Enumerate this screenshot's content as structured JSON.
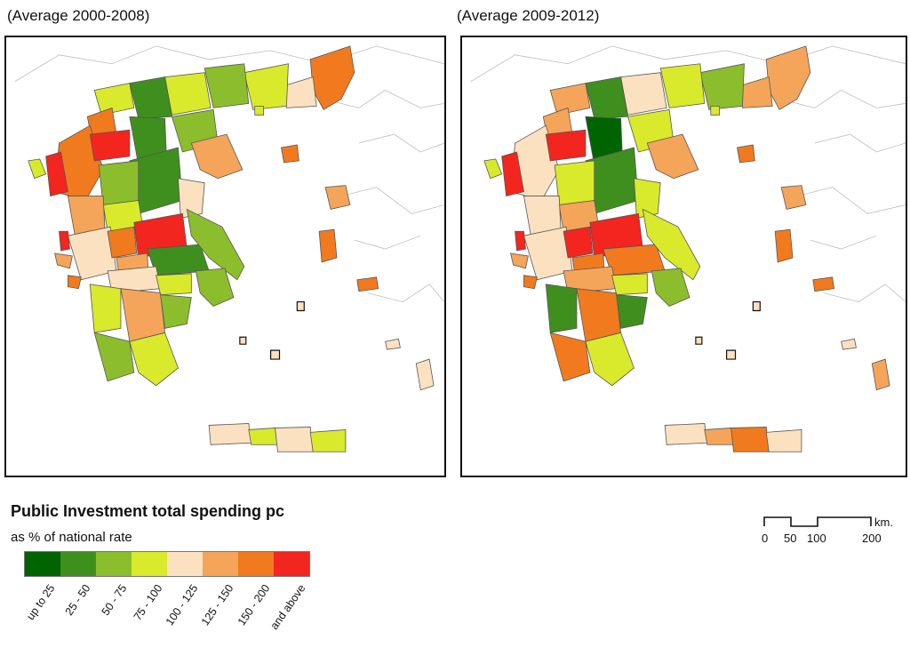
{
  "maps": {
    "left": {
      "title": "(Average 2000-2008)"
    },
    "right": {
      "title": "(Average 2009-2012)"
    }
  },
  "legend": {
    "title": "Public Investment total spending pc",
    "subtitle": "as % of national rate",
    "classes": [
      {
        "label": "up to 25",
        "color": "#006400"
      },
      {
        "label": "25 - 50",
        "color": "#3f8f1f"
      },
      {
        "label": "50 - 75",
        "color": "#8cbd2c"
      },
      {
        "label": "75 - 100",
        "color": "#d8ea2b"
      },
      {
        "label": "100 - 125",
        "color": "#fbe1c0"
      },
      {
        "label": "125 - 150",
        "color": "#f4a55a"
      },
      {
        "label": "150 - 200",
        "color": "#f17a1e"
      },
      {
        "label": "and above",
        "color": "#f2251f"
      }
    ]
  },
  "scalebar": {
    "ticks": [
      "0",
      "50",
      "100",
      "200"
    ],
    "unit": "km."
  }
}
